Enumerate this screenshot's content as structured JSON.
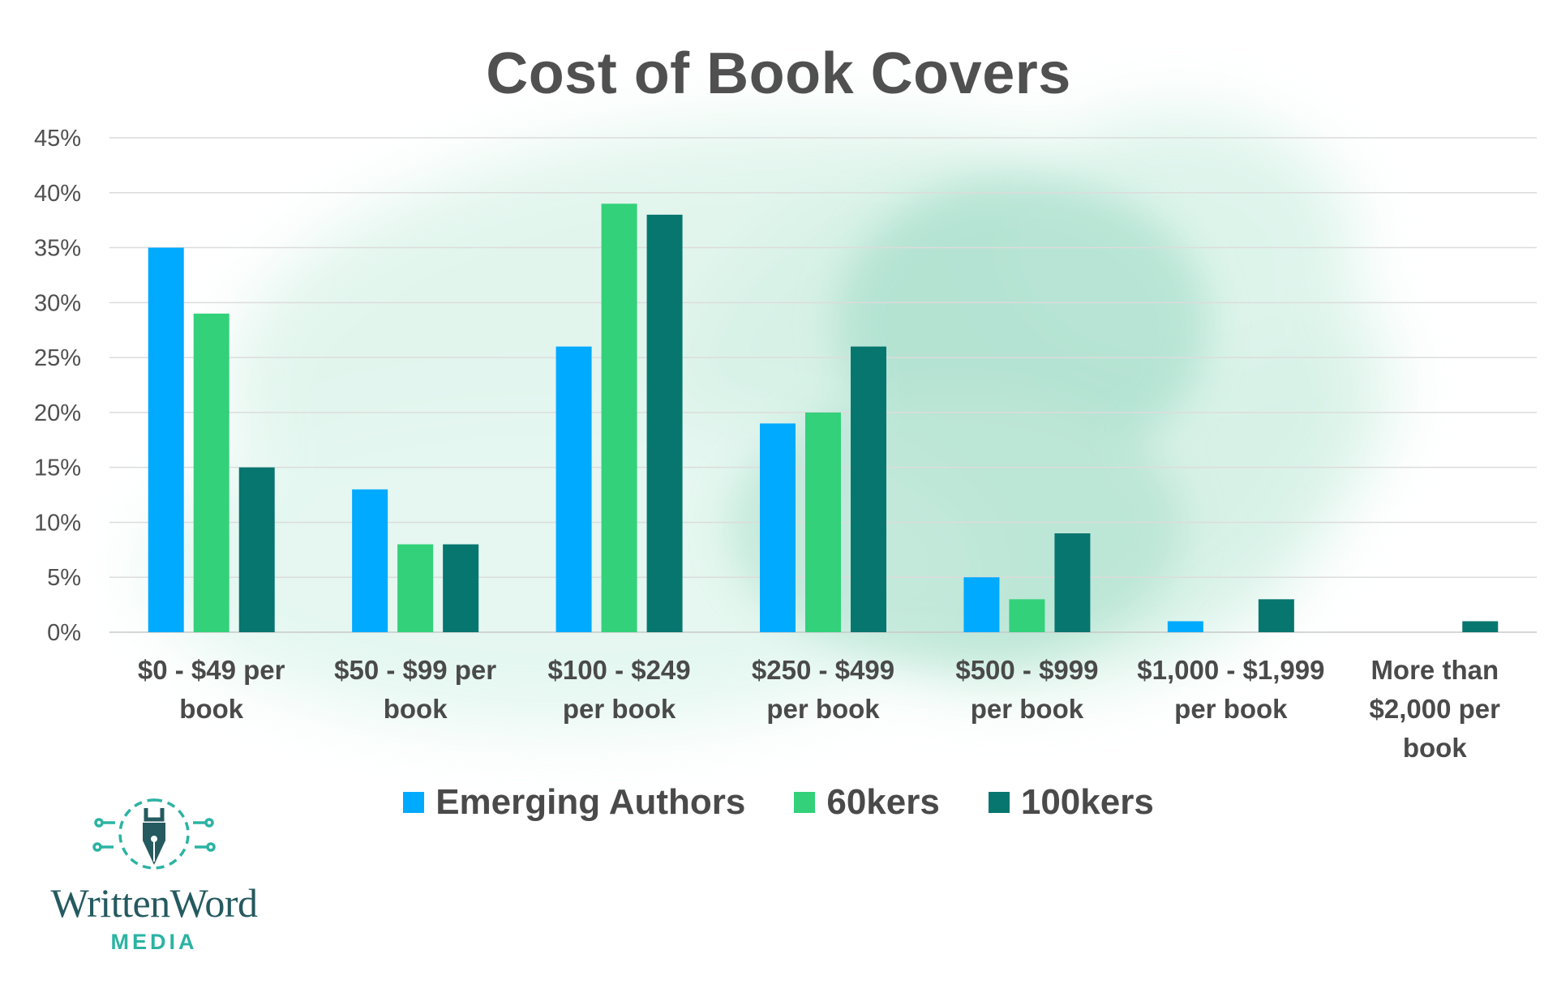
{
  "colors": {
    "emerging": "#00aaff",
    "sixtyk": "#33d17a",
    "hundredk": "#06766f",
    "wash": "#9fe0c8",
    "logo_primary": "#245a60",
    "logo_accent": "#2bb3a3"
  },
  "logo": {
    "icon": "pen-nib-circuit-icon",
    "name": "WrittenWord",
    "tagline": "MEDIA"
  },
  "chart_data": {
    "type": "bar",
    "title": "Cost of Book Covers",
    "xlabel": "",
    "ylabel": "",
    "ylim": [
      0,
      45
    ],
    "yticks": [
      "0%",
      "5%",
      "10%",
      "15%",
      "20%",
      "25%",
      "30%",
      "35%",
      "40%",
      "45%"
    ],
    "grid": true,
    "legend_position": "bottom",
    "categories": [
      [
        "$0 - $49 per",
        "book"
      ],
      [
        "$50 - $99 per",
        "book"
      ],
      [
        "$100 - $249",
        "per book"
      ],
      [
        "$250 - $499",
        "per book"
      ],
      [
        "$500 - $999",
        "per book"
      ],
      [
        "$1,000 - $1,999",
        "per book"
      ],
      [
        "More than",
        "$2,000 per",
        "book"
      ]
    ],
    "series": [
      {
        "name": "Emerging Authors",
        "color": "#00aaff",
        "values": [
          35,
          13,
          26,
          19,
          5,
          1,
          0
        ]
      },
      {
        "name": "60kers",
        "color": "#33d17a",
        "values": [
          29,
          8,
          39,
          20,
          3,
          0,
          0
        ]
      },
      {
        "name": "100kers",
        "color": "#06766f",
        "values": [
          15,
          8,
          38,
          26,
          9,
          3,
          1
        ]
      }
    ]
  }
}
